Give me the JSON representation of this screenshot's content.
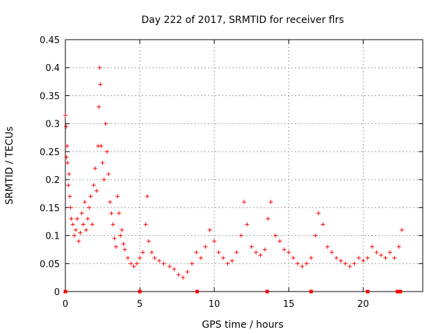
{
  "chart_data": {
    "type": "scatter",
    "title": "Day 222 of 2017, SRMTID for receiver flrs",
    "xlabel": "GPS time / hours",
    "ylabel": "SRMTID / TECUs",
    "xlim": [
      0,
      24
    ],
    "ylim": [
      0,
      0.45
    ],
    "x_ticks": [
      "0",
      "5",
      "10",
      "15",
      "20"
    ],
    "y_ticks": [
      "0",
      "0.05",
      "0.1",
      "0.15",
      "0.2",
      "0.25",
      "0.3",
      "0.35",
      "0.4",
      "0.45"
    ],
    "grid": true,
    "marker": "+",
    "series": [
      {
        "color": "#ff0000",
        "points": [
          [
            0.0,
            0.315
          ],
          [
            0.05,
            0.295
          ],
          [
            0.08,
            0.24
          ],
          [
            0.12,
            0.26
          ],
          [
            0.15,
            0.23
          ],
          [
            0.2,
            0.19
          ],
          [
            0.25,
            0.21
          ],
          [
            0.3,
            0.17
          ],
          [
            0.35,
            0.15
          ],
          [
            0.4,
            0.13
          ],
          [
            0.5,
            0.12
          ],
          [
            0.6,
            0.1
          ],
          [
            0.7,
            0.11
          ],
          [
            0.8,
            0.13
          ],
          [
            0.9,
            0.09
          ],
          [
            1.0,
            0.105
          ],
          [
            1.1,
            0.14
          ],
          [
            1.2,
            0.12
          ],
          [
            1.3,
            0.16
          ],
          [
            1.4,
            0.11
          ],
          [
            1.5,
            0.13
          ],
          [
            1.6,
            0.15
          ],
          [
            1.7,
            0.17
          ],
          [
            1.8,
            0.12
          ],
          [
            1.9,
            0.19
          ],
          [
            2.0,
            0.22
          ],
          [
            2.1,
            0.18
          ],
          [
            2.2,
            0.26
          ],
          [
            2.25,
            0.33
          ],
          [
            2.3,
            0.4
          ],
          [
            2.35,
            0.37
          ],
          [
            2.4,
            0.26
          ],
          [
            2.5,
            0.23
          ],
          [
            2.6,
            0.2
          ],
          [
            2.7,
            0.3
          ],
          [
            2.8,
            0.25
          ],
          [
            2.9,
            0.21
          ],
          [
            3.0,
            0.16
          ],
          [
            3.1,
            0.14
          ],
          [
            3.2,
            0.12
          ],
          [
            3.3,
            0.095
          ],
          [
            3.4,
            0.08
          ],
          [
            3.5,
            0.17
          ],
          [
            3.6,
            0.14
          ],
          [
            3.7,
            0.1
          ],
          [
            3.8,
            0.11
          ],
          [
            3.9,
            0.085
          ],
          [
            4.0,
            0.075
          ],
          [
            4.2,
            0.06
          ],
          [
            4.4,
            0.05
          ],
          [
            4.6,
            0.045
          ],
          [
            4.8,
            0.05
          ],
          [
            5.0,
            0.06
          ],
          [
            5.2,
            0.07
          ],
          [
            5.4,
            0.12
          ],
          [
            5.5,
            0.17
          ],
          [
            5.6,
            0.09
          ],
          [
            5.8,
            0.07
          ],
          [
            6.0,
            0.06
          ],
          [
            6.3,
            0.055
          ],
          [
            6.6,
            0.05
          ],
          [
            7.0,
            0.045
          ],
          [
            7.3,
            0.04
          ],
          [
            7.6,
            0.03
          ],
          [
            7.9,
            0.025
          ],
          [
            8.2,
            0.035
          ],
          [
            8.5,
            0.05
          ],
          [
            8.8,
            0.07
          ],
          [
            9.1,
            0.06
          ],
          [
            9.4,
            0.08
          ],
          [
            9.7,
            0.11
          ],
          [
            10.0,
            0.09
          ],
          [
            10.3,
            0.07
          ],
          [
            10.6,
            0.06
          ],
          [
            10.9,
            0.05
          ],
          [
            11.2,
            0.055
          ],
          [
            11.5,
            0.07
          ],
          [
            11.8,
            0.1
          ],
          [
            12.0,
            0.16
          ],
          [
            12.2,
            0.12
          ],
          [
            12.5,
            0.08
          ],
          [
            12.8,
            0.07
          ],
          [
            13.1,
            0.065
          ],
          [
            13.4,
            0.075
          ],
          [
            13.6,
            0.13
          ],
          [
            13.8,
            0.16
          ],
          [
            14.1,
            0.1
          ],
          [
            14.4,
            0.09
          ],
          [
            14.7,
            0.075
          ],
          [
            15.0,
            0.07
          ],
          [
            15.3,
            0.06
          ],
          [
            15.6,
            0.05
          ],
          [
            15.9,
            0.045
          ],
          [
            16.2,
            0.05
          ],
          [
            16.5,
            0.06
          ],
          [
            16.8,
            0.1
          ],
          [
            17.0,
            0.14
          ],
          [
            17.3,
            0.12
          ],
          [
            17.6,
            0.08
          ],
          [
            17.9,
            0.07
          ],
          [
            18.2,
            0.06
          ],
          [
            18.5,
            0.055
          ],
          [
            18.8,
            0.05
          ],
          [
            19.1,
            0.045
          ],
          [
            19.4,
            0.05
          ],
          [
            19.7,
            0.06
          ],
          [
            20.0,
            0.055
          ],
          [
            20.3,
            0.06
          ],
          [
            20.6,
            0.08
          ],
          [
            20.9,
            0.07
          ],
          [
            21.2,
            0.065
          ],
          [
            21.5,
            0.06
          ],
          [
            21.8,
            0.07
          ],
          [
            22.1,
            0.06
          ],
          [
            22.4,
            0.08
          ],
          [
            22.6,
            0.11
          ]
        ]
      }
    ],
    "x_axis_gap_marks": [
      0,
      5.0,
      8.85,
      13.55,
      16.5,
      20.3,
      22.3,
      22.5
    ]
  }
}
